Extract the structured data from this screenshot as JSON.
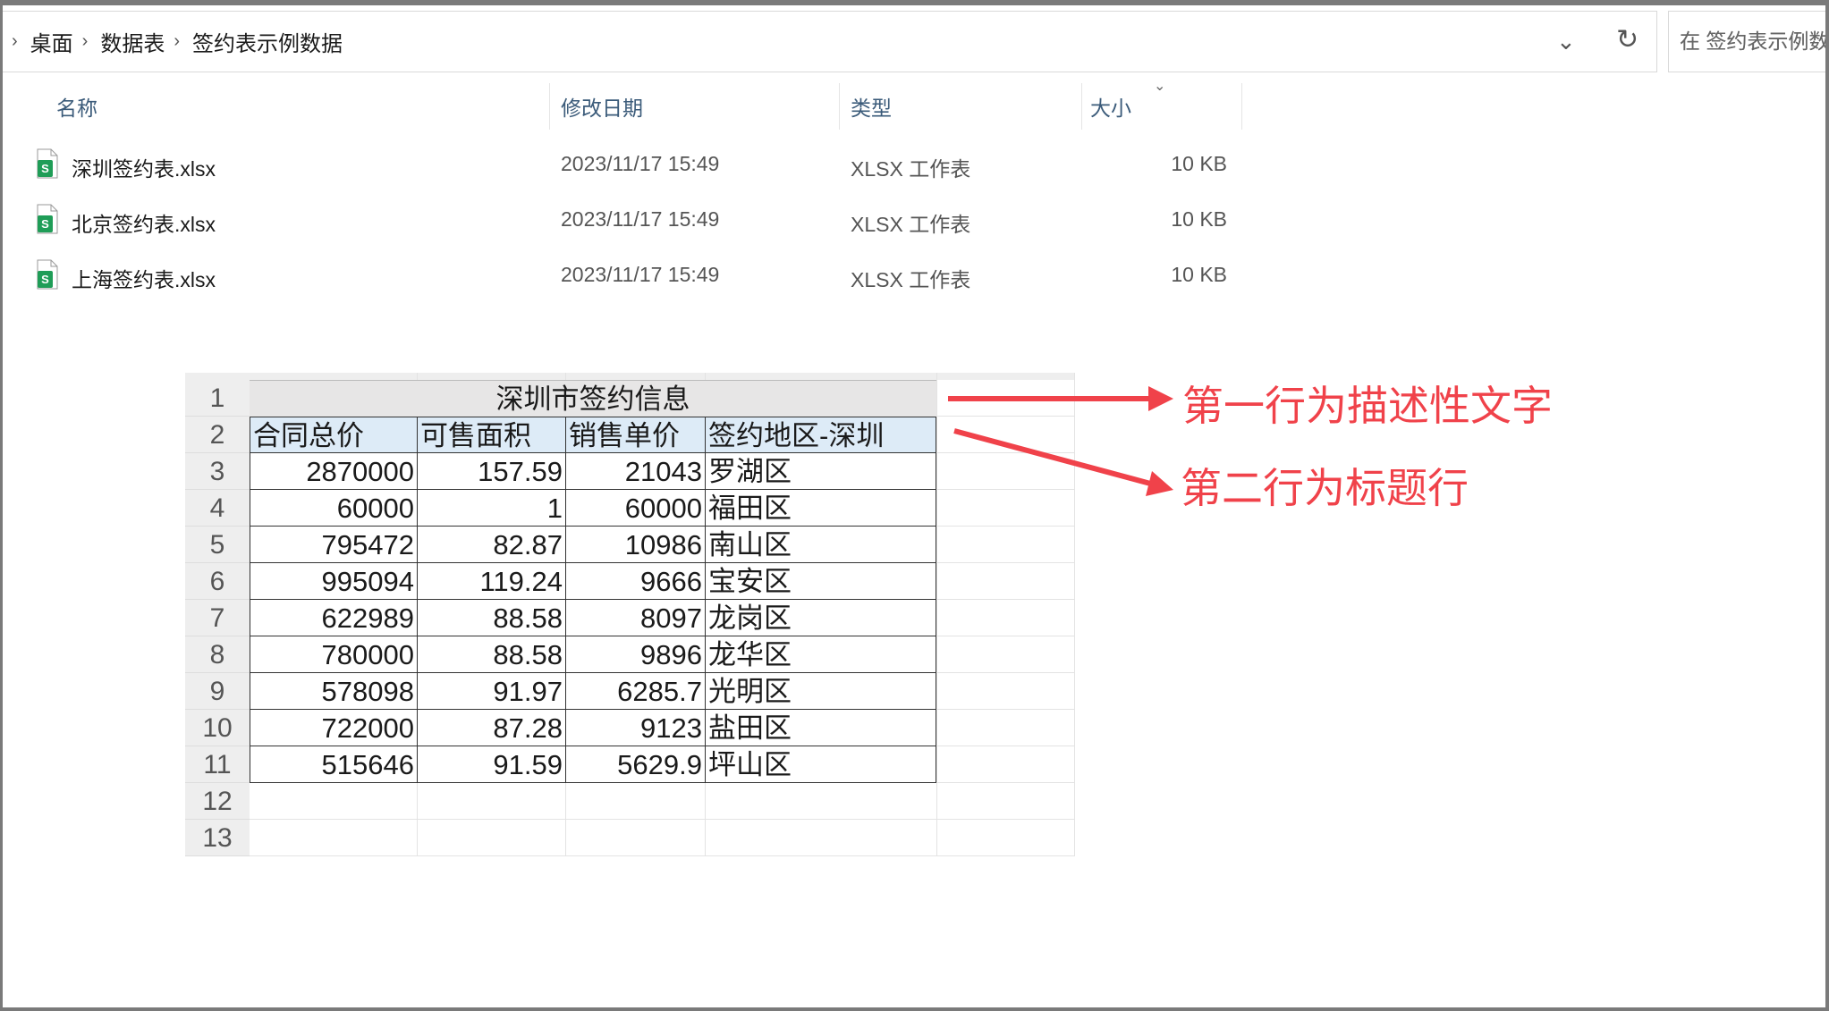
{
  "breadcrumb": [
    "桌面",
    "数据表",
    "签约表示例数据"
  ],
  "search_placeholder": "在 签约表示例数据 中搜索",
  "search_visible": "在 签约表示例数",
  "columns": {
    "name": "名称",
    "date": "修改日期",
    "type": "类型",
    "size": "大小"
  },
  "files": [
    {
      "name": "深圳签约表.xlsx",
      "date": "2023/11/17 15:49",
      "type": "XLSX 工作表",
      "size": "10 KB"
    },
    {
      "name": "北京签约表.xlsx",
      "date": "2023/11/17 15:49",
      "type": "XLSX 工作表",
      "size": "10 KB"
    },
    {
      "name": "上海签约表.xlsx",
      "date": "2023/11/17 15:49",
      "type": "XLSX 工作表",
      "size": "10 KB"
    }
  ],
  "sheet": {
    "title": "深圳市签约信息",
    "headers": [
      "合同总价",
      "可售面积",
      "销售单价",
      "签约地区-深圳"
    ],
    "rows": [
      [
        "2870000",
        "157.59",
        "21043",
        "罗湖区"
      ],
      [
        "60000",
        "1",
        "60000",
        "福田区"
      ],
      [
        "795472",
        "82.87",
        "10986",
        "南山区"
      ],
      [
        "995094",
        "119.24",
        "9666",
        "宝安区"
      ],
      [
        "622989",
        "88.58",
        "8097",
        "龙岗区"
      ],
      [
        "780000",
        "88.58",
        "9896",
        "龙华区"
      ],
      [
        "578098",
        "91.97",
        "6285.7",
        "光明区"
      ],
      [
        "722000",
        "87.28",
        "9123",
        "盐田区"
      ],
      [
        "515646",
        "91.59",
        "5629.9",
        "坪山区"
      ]
    ],
    "row_numbers": [
      "1",
      "2",
      "3",
      "4",
      "5",
      "6",
      "7",
      "8",
      "9",
      "10",
      "11",
      "12",
      "13"
    ]
  },
  "annotations": [
    "第一行为描述性文字",
    "第二行为标题行"
  ],
  "colors": {
    "annotation": "#f0424a",
    "header_fill": "#ddebf7",
    "title_fill": "#e7e6e6",
    "excel_green": "#1f9d57"
  }
}
